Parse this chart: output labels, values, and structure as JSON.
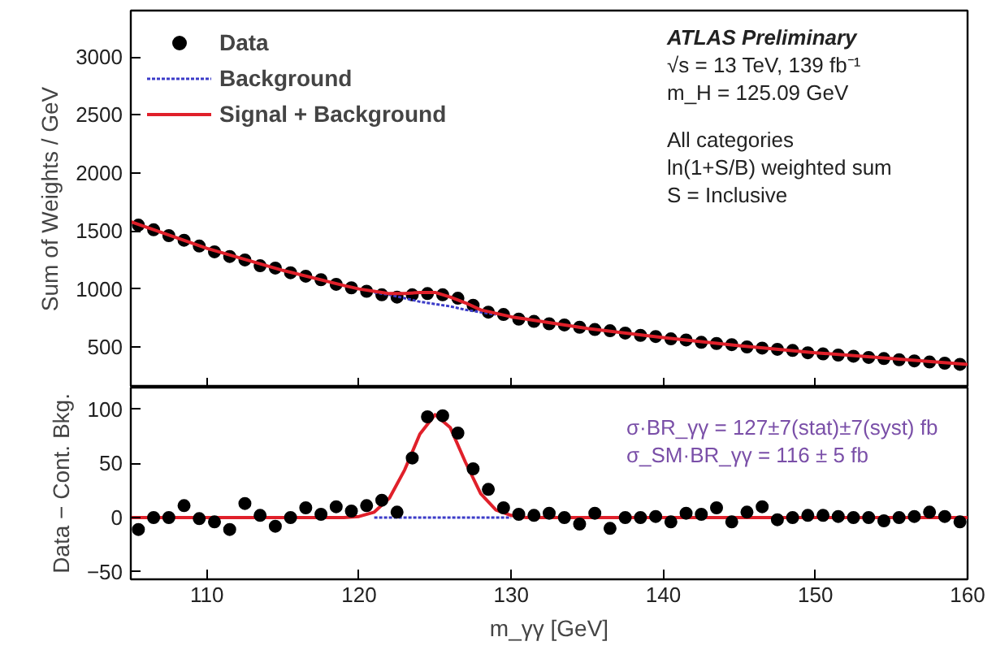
{
  "chart_data": [
    {
      "type": "scatter",
      "ylabel": "Sum of Weights / GeV",
      "xlim": [
        105,
        160
      ],
      "xticks": [
        110,
        120,
        130,
        140,
        150,
        160
      ],
      "ylim": [
        150,
        3400
      ],
      "yticks": [
        500,
        1000,
        1500,
        2000,
        2500,
        3000
      ],
      "tick_labels": "y",
      "grid": false,
      "legend": "top left",
      "marker": "circle",
      "annotations": [
        "ATLAS Preliminary",
        "√s = 13 TeV, 139 fb⁻¹",
        "m_H = 125.09 GeV",
        "All categories",
        "ln(1+S/B) weighted sum",
        "S = Inclusive"
      ],
      "series": [
        {
          "name": "Data",
          "color": "#000000",
          "x": [
            105.5,
            106.5,
            107.5,
            108.5,
            109.5,
            110.5,
            111.5,
            112.5,
            113.5,
            114.5,
            115.5,
            116.5,
            117.5,
            118.5,
            119.5,
            120.5,
            121.5,
            122.5,
            123.5,
            124.5,
            125.5,
            126.5,
            127.5,
            128.5,
            129.5,
            130.5,
            131.5,
            132.5,
            133.5,
            134.5,
            135.5,
            136.5,
            137.5,
            138.5,
            139.5,
            140.5,
            141.5,
            142.5,
            143.5,
            144.5,
            145.5,
            146.5,
            147.5,
            148.5,
            149.5,
            150.5,
            151.5,
            152.5,
            153.5,
            154.5,
            155.5,
            156.5,
            157.5,
            158.5,
            159.5
          ],
          "values": [
            1550,
            1510,
            1460,
            1420,
            1370,
            1320,
            1280,
            1250,
            1200,
            1180,
            1140,
            1110,
            1080,
            1040,
            1010,
            980,
            950,
            930,
            950,
            960,
            950,
            920,
            860,
            800,
            780,
            740,
            720,
            700,
            690,
            670,
            650,
            640,
            620,
            600,
            590,
            570,
            560,
            540,
            530,
            520,
            500,
            490,
            480,
            470,
            450,
            440,
            430,
            420,
            410,
            400,
            390,
            380,
            370,
            360,
            350
          ]
        },
        {
          "name": "Background",
          "type": "line",
          "marker": "none",
          "line_style": "dotted",
          "color": "#3b3bc8",
          "x": [
            121,
            122,
            123,
            124,
            125,
            126,
            127,
            128,
            129
          ],
          "values": [
            970,
            950,
            920,
            890,
            870,
            850,
            820,
            800,
            780
          ]
        },
        {
          "name": "Signal + Background",
          "type": "line",
          "marker": "none",
          "line_style": "solid",
          "color": "#e0202a",
          "x": [
            105,
            110,
            115,
            119,
            120,
            121,
            122,
            123,
            124,
            125,
            126,
            127,
            128,
            129,
            130,
            131,
            135,
            140,
            145,
            150,
            155,
            160
          ],
          "values": [
            1580,
            1350,
            1160,
            1030,
            1000,
            980,
            960,
            960,
            970,
            970,
            930,
            880,
            820,
            790,
            760,
            740,
            660,
            580,
            510,
            450,
            400,
            350
          ]
        }
      ]
    },
    {
      "type": "scatter",
      "ylabel": "Data − Cont. Bkg.",
      "xlabel": "m_γγ [GeV]",
      "xlim": [
        105,
        160
      ],
      "xticks": [
        110,
        120,
        130,
        140,
        150,
        160
      ],
      "ylim": [
        -57,
        120
      ],
      "yticks": [
        -50,
        0,
        50,
        100
      ],
      "grid": false,
      "marker": "circle",
      "annotations": [
        "σ·BR_γγ = 127±7(stat)±7(syst) fb",
        "σ_SM·BR_γγ = 116 ± 5 fb"
      ],
      "series": [
        {
          "type": "line",
          "marker": "none",
          "line_style": "dotted",
          "color": "#3b3bc8",
          "x": [
            121,
            130
          ],
          "values": [
            0,
            0
          ]
        },
        {
          "type": "line",
          "marker": "none",
          "line_style": "solid",
          "color": "#e0202a",
          "x": [
            105,
            119,
            120,
            121,
            122,
            123,
            124,
            125,
            126,
            127,
            128,
            129,
            130,
            131,
            160
          ],
          "values": [
            0,
            0,
            1,
            5,
            18,
            44,
            77,
            95,
            83,
            51,
            22,
            7,
            2,
            0,
            0
          ]
        },
        {
          "color": "#000000",
          "x": [
            105.5,
            106.5,
            107.5,
            108.5,
            109.5,
            110.5,
            111.5,
            112.5,
            113.5,
            114.5,
            115.5,
            116.5,
            117.5,
            118.5,
            119.5,
            120.5,
            121.5,
            122.5,
            123.5,
            124.5,
            125.5,
            126.5,
            127.5,
            128.5,
            129.5,
            130.5,
            131.5,
            132.5,
            133.5,
            134.5,
            135.5,
            136.5,
            137.5,
            138.5,
            139.5,
            140.5,
            141.5,
            142.5,
            143.5,
            144.5,
            145.5,
            146.5,
            147.5,
            148.5,
            149.5,
            150.5,
            151.5,
            152.5,
            153.5,
            154.5,
            155.5,
            156.5,
            157.5,
            158.5,
            159.5
          ],
          "values": [
            -11,
            0,
            0,
            11,
            -1,
            -4,
            -11,
            13,
            2,
            -8,
            0,
            9,
            3,
            10,
            6,
            11,
            16,
            5,
            55,
            93,
            94,
            78,
            45,
            26,
            9,
            3,
            2,
            4,
            0,
            -6,
            4,
            -10,
            0,
            0,
            1,
            -4,
            4,
            3,
            9,
            -4,
            5,
            10,
            -2,
            0,
            2,
            2,
            1,
            0,
            0,
            -3,
            0,
            1,
            5,
            1,
            -4
          ]
        }
      ]
    }
  ]
}
